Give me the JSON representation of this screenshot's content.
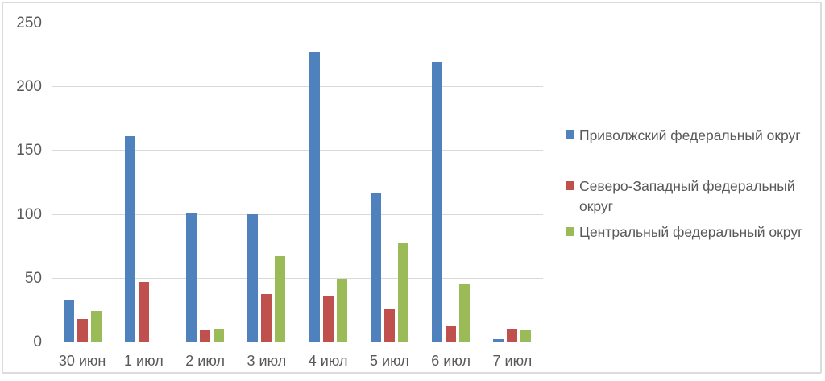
{
  "chart_data": {
    "type": "bar",
    "title": "",
    "xlabel": "",
    "ylabel": "",
    "categories": [
      "30 июн",
      "1 июл",
      "2 июл",
      "3 июл",
      "4 июл",
      "5 июл",
      "6 июл",
      "7 июл"
    ],
    "series": [
      {
        "name": "Приволжский федеральный округ",
        "color": "#4F81BD",
        "values": [
          32,
          161,
          101,
          100,
          227,
          116,
          219,
          2
        ]
      },
      {
        "name": "Северо-Западный федеральный округ",
        "color": "#C0504D",
        "values": [
          18,
          47,
          9,
          37,
          36,
          26,
          12,
          10
        ]
      },
      {
        "name": "Центральный федеральный округ",
        "color": "#9BBB59",
        "values": [
          24,
          0,
          10,
          67,
          49,
          77,
          45,
          9
        ]
      }
    ],
    "ylim": [
      0,
      250
    ],
    "yticks": [
      0,
      50,
      100,
      150,
      200,
      250
    ],
    "grid": true,
    "legend_position": "right"
  },
  "colors": {
    "text": "#595959",
    "gridline": "#D9D9D9",
    "frame_border": "#DCDCDC",
    "background": "#FFFFFF"
  }
}
